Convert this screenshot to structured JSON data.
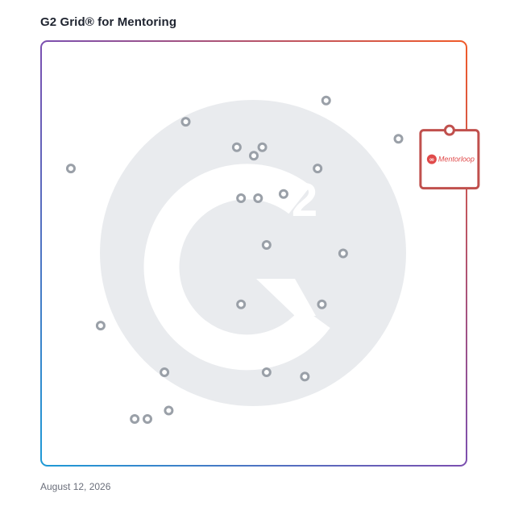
{
  "title": "G2 Grid® for Mentoring",
  "date": "August 12, 2026",
  "watermark_icon": "g2-logo-icon",
  "colors": {
    "point_stroke": "#9aa0a8",
    "highlight_border": "#c0504d",
    "brand_red": "#e04a4a",
    "watermark": "#e9ebee"
  },
  "chart_data": {
    "type": "scatter",
    "title": "G2 Grid® for Mentoring",
    "xlabel": "",
    "ylabel": "",
    "xlim": [
      0,
      100
    ],
    "ylim": [
      0,
      100
    ],
    "quadrant_split": {
      "x": 50,
      "y": 50
    },
    "grid": false,
    "points": [
      {
        "x": 67,
        "y": 86
      },
      {
        "x": 34,
        "y": 81
      },
      {
        "x": 84,
        "y": 77
      },
      {
        "x": 46,
        "y": 75
      },
      {
        "x": 52,
        "y": 75
      },
      {
        "x": 50,
        "y": 73
      },
      {
        "x": 7,
        "y": 70
      },
      {
        "x": 65,
        "y": 70
      },
      {
        "x": 57,
        "y": 64
      },
      {
        "x": 47,
        "y": 63
      },
      {
        "x": 51,
        "y": 63
      },
      {
        "x": 53,
        "y": 52
      },
      {
        "x": 71,
        "y": 50
      },
      {
        "x": 66,
        "y": 38
      },
      {
        "x": 47,
        "y": 38
      },
      {
        "x": 14,
        "y": 33
      },
      {
        "x": 29,
        "y": 22
      },
      {
        "x": 53,
        "y": 22
      },
      {
        "x": 62,
        "y": 21
      },
      {
        "x": 30,
        "y": 13
      },
      {
        "x": 22,
        "y": 11
      },
      {
        "x": 25,
        "y": 11
      }
    ],
    "highlight": {
      "x": 96,
      "y": 79,
      "label": "Mentorloop"
    }
  }
}
